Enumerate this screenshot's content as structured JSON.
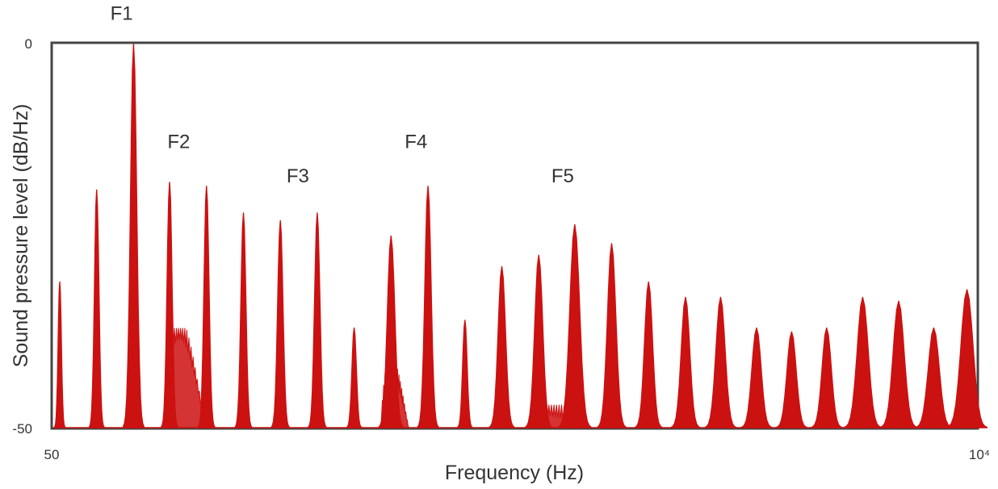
{
  "chart_data": {
    "type": "line",
    "title": "",
    "xlabel": "Frequency (Hz)",
    "ylabel": "Sound pressure level (dB/Hz)",
    "x_scale": "linear",
    "xlim": [
      0,
      1
    ],
    "x_tick_labels": {
      "left": "50",
      "right": "10⁴"
    },
    "ylim": [
      -50,
      0
    ],
    "y_tick_labels": {
      "top": "0",
      "bottom": "-50"
    },
    "grid": false,
    "legend": "none",
    "line_color": "#cc1111",
    "frame_color": "#444444",
    "series": [
      {
        "harmonics": [
          {
            "x": 0.007,
            "peak_db": -31,
            "width": 0.0018
          },
          {
            "x": 0.047,
            "peak_db": -19,
            "width": 0.0025
          },
          {
            "x": 0.087,
            "peak_db": 0,
            "width": 0.0035
          },
          {
            "x": 0.126,
            "peak_db": -18,
            "width": 0.0028
          },
          {
            "x": 0.166,
            "peak_db": -18.5,
            "width": 0.0028
          },
          {
            "x": 0.206,
            "peak_db": -22,
            "width": 0.0028
          },
          {
            "x": 0.246,
            "peak_db": -23,
            "width": 0.003
          },
          {
            "x": 0.286,
            "peak_db": -22,
            "width": 0.003
          },
          {
            "x": 0.326,
            "peak_db": -37,
            "width": 0.0025
          },
          {
            "x": 0.366,
            "peak_db": -25,
            "width": 0.0042
          },
          {
            "x": 0.406,
            "peak_db": -18.5,
            "width": 0.0035
          },
          {
            "x": 0.446,
            "peak_db": -36,
            "width": 0.0025
          },
          {
            "x": 0.486,
            "peak_db": -29,
            "width": 0.0042
          },
          {
            "x": 0.526,
            "peak_db": -27.5,
            "width": 0.0045
          },
          {
            "x": 0.565,
            "peak_db": -23.5,
            "width": 0.0055
          },
          {
            "x": 0.605,
            "peak_db": -26,
            "width": 0.0048
          },
          {
            "x": 0.645,
            "peak_db": -31,
            "width": 0.0045
          },
          {
            "x": 0.685,
            "peak_db": -33,
            "width": 0.0048
          },
          {
            "x": 0.723,
            "peak_db": -33,
            "width": 0.0052
          },
          {
            "x": 0.762,
            "peak_db": -37,
            "width": 0.0052
          },
          {
            "x": 0.8,
            "peak_db": -37.5,
            "width": 0.0052
          },
          {
            "x": 0.838,
            "peak_db": -37,
            "width": 0.0052
          },
          {
            "x": 0.877,
            "peak_db": -33,
            "width": 0.0062
          },
          {
            "x": 0.916,
            "peak_db": -33.5,
            "width": 0.0062
          },
          {
            "x": 0.954,
            "peak_db": -37,
            "width": 0.0062
          },
          {
            "x": 0.99,
            "peak_db": -32,
            "width": 0.0068
          }
        ],
        "noise_humps": [
          {
            "x0": 0.12,
            "x1": 0.165,
            "peak_db": -37
          },
          {
            "x0": 0.355,
            "x1": 0.385,
            "peak_db": -42
          },
          {
            "x0": 0.515,
            "x1": 0.57,
            "peak_db": -47
          }
        ]
      }
    ],
    "annotations": [
      {
        "text": "F1",
        "x": 0.074,
        "db": 3.2
      },
      {
        "text": "F2",
        "x": 0.136,
        "db": -13.5
      },
      {
        "text": "F3",
        "x": 0.265,
        "db": -18
      },
      {
        "text": "F4",
        "x": 0.393,
        "db": -13.5
      },
      {
        "text": "F5",
        "x": 0.552,
        "db": -18
      }
    ]
  }
}
